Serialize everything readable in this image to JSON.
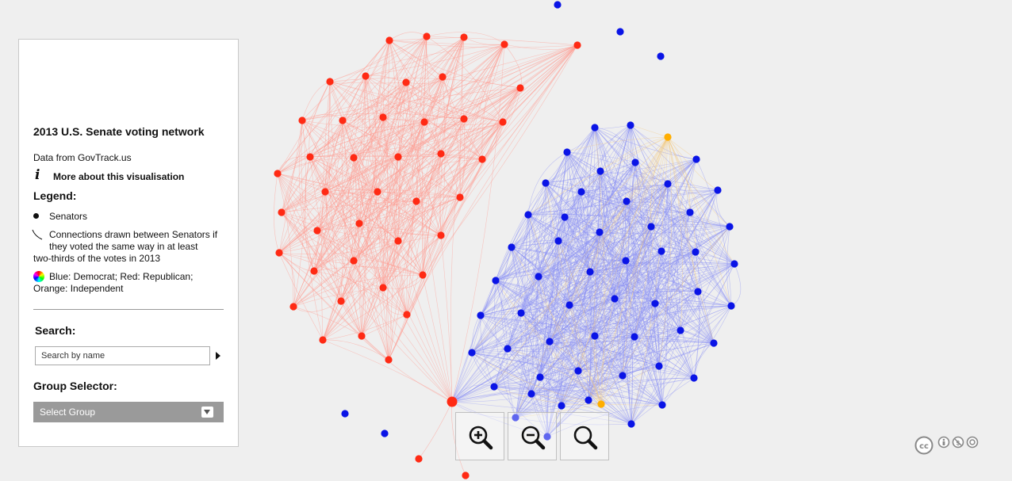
{
  "panel": {
    "title": "2013 U.S. Senate voting network",
    "source": "Data from GovTrack.us",
    "info_glyph": "i",
    "more_link": "More about this visualisation",
    "legend": {
      "title": "Legend:",
      "senators": "Senators",
      "connections_line1": "Connections drawn between Senators if they voted the same way in at least",
      "connections_line2": "two-thirds of the votes in 2013",
      "colors_line1": "Blue: Democrat; Red: Republican;",
      "colors_line2": "Orange: Independent"
    },
    "search": {
      "title": "Search:",
      "placeholder": "Search by name"
    },
    "group_selector": {
      "title": "Group Selector:",
      "selected": "Select Group"
    }
  },
  "zoom": {
    "in_icon": "zoom-in-icon",
    "out_icon": "zoom-out-icon",
    "reset_icon": "zoom-reset-icon"
  },
  "colors": {
    "republican": "#ff2a14",
    "democrat": "#0a14e6",
    "independent": "#ffae00",
    "republican_edge": "#ff9a90",
    "democrat_edge": "#8a8ff5",
    "independent_edge": "#f4c87a"
  },
  "license_icon": "creative-commons-by-nc-sa-icon"
}
